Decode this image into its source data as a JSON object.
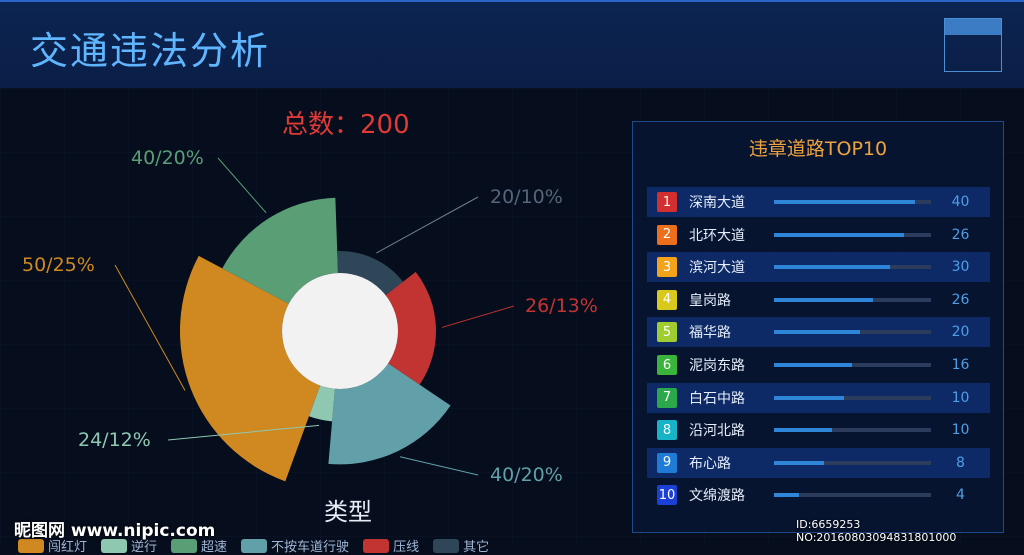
{
  "header": {
    "title": "交通违法分析"
  },
  "total_label": "总数：200",
  "type_label": "类型",
  "chart_data": {
    "type": "pie",
    "subtype": "rose",
    "title": "总数：200",
    "xlabel": "类型",
    "slices": [
      {
        "value": 50,
        "label": "50/25%",
        "color": "#d08920"
      },
      {
        "value": 40,
        "label": "40/20%",
        "color": "#5a9e76"
      },
      {
        "value": 20,
        "label": "20/10%",
        "color": "#2f4658"
      },
      {
        "value": 26,
        "label": "26/13%",
        "color": "#c23431"
      },
      {
        "value": 40,
        "label": "40/20%",
        "color": "#62a0a9"
      },
      {
        "value": 24,
        "label": "24/12%",
        "color": "#8fc8b1"
      }
    ],
    "legend": [
      "闯红灯",
      "逆行",
      "超速",
      "不按车道行驶",
      "压线",
      "其它"
    ],
    "legend_colors": [
      "#d08920",
      "#8fc8b1",
      "#5a9e76",
      "#62a0a9",
      "#c23431",
      "#2f4658"
    ]
  },
  "panel": {
    "title": "违章道路TOP10",
    "rows": [
      {
        "rank": "1",
        "name": "深南大道",
        "value": "40",
        "fraction": 0.9,
        "badge_color": "#d42f2f"
      },
      {
        "rank": "2",
        "name": "北环大道",
        "value": "26",
        "fraction": 0.83,
        "badge_color": "#ee6f1b"
      },
      {
        "rank": "3",
        "name": "滨河大道",
        "value": "30",
        "fraction": 0.74,
        "badge_color": "#f4a21a"
      },
      {
        "rank": "4",
        "name": "皇岗路",
        "value": "26",
        "fraction": 0.63,
        "badge_color": "#d8c91c"
      },
      {
        "rank": "5",
        "name": "福华路",
        "value": "20",
        "fraction": 0.55,
        "badge_color": "#9fcc2e"
      },
      {
        "rank": "6",
        "name": "泥岗东路",
        "value": "16",
        "fraction": 0.5,
        "badge_color": "#3bb43b"
      },
      {
        "rank": "7",
        "name": "白石中路",
        "value": "10",
        "fraction": 0.45,
        "badge_color": "#2aa84a"
      },
      {
        "rank": "8",
        "name": "沿河北路",
        "value": "10",
        "fraction": 0.37,
        "badge_color": "#17b3c6"
      },
      {
        "rank": "9",
        "name": "布心路",
        "value": "8",
        "fraction": 0.32,
        "badge_color": "#1f7bd6"
      },
      {
        "rank": "10",
        "name": "文绵渡路",
        "value": "4",
        "fraction": 0.16,
        "badge_color": "#1c3fd6"
      }
    ]
  },
  "watermark": {
    "left": "昵图网 www.nipic.com",
    "right": "ID:6659253 NO:20160803094831801000"
  }
}
